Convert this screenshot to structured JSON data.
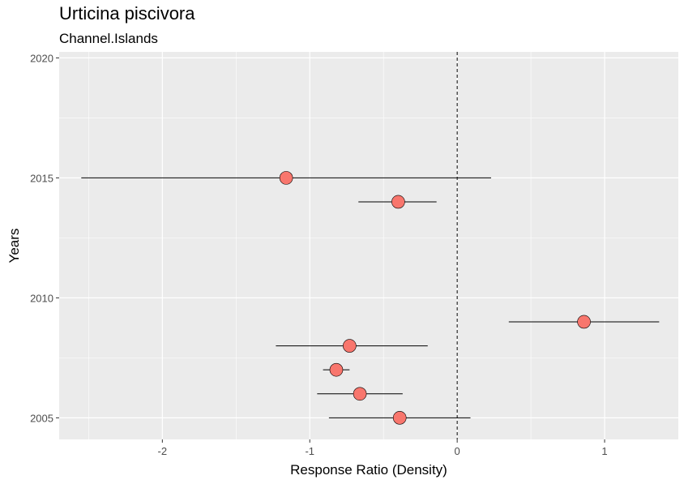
{
  "chart_data": {
    "type": "scatter",
    "title": "Urticina piscivora",
    "subtitle": "Channel.Islands",
    "xlabel": "Response Ratio (Density)",
    "ylabel": "Years",
    "xlim": [
      -2.7,
      1.5
    ],
    "ylim": [
      2004.1,
      2020.25
    ],
    "x_ticks": [
      -2,
      -1,
      0,
      1
    ],
    "y_ticks": [
      2005,
      2010,
      2015,
      2020
    ],
    "reference_line_x": 0,
    "grid": true,
    "point_color": "#f8766d",
    "panel_background": "#ebebeb",
    "points": [
      {
        "year": 2005,
        "value": -0.39,
        "ci_low": -0.87,
        "ci_high": 0.09
      },
      {
        "year": 2006,
        "value": -0.66,
        "ci_low": -0.95,
        "ci_high": -0.37
      },
      {
        "year": 2007,
        "value": -0.82,
        "ci_low": -0.91,
        "ci_high": -0.73
      },
      {
        "year": 2008,
        "value": -0.73,
        "ci_low": -1.23,
        "ci_high": -0.2
      },
      {
        "year": 2009,
        "value": 0.86,
        "ci_low": 0.35,
        "ci_high": 1.37
      },
      {
        "year": 2014,
        "value": -0.4,
        "ci_low": -0.67,
        "ci_high": -0.14
      },
      {
        "year": 2015,
        "value": -1.16,
        "ci_low": -2.55,
        "ci_high": 0.23
      }
    ]
  }
}
